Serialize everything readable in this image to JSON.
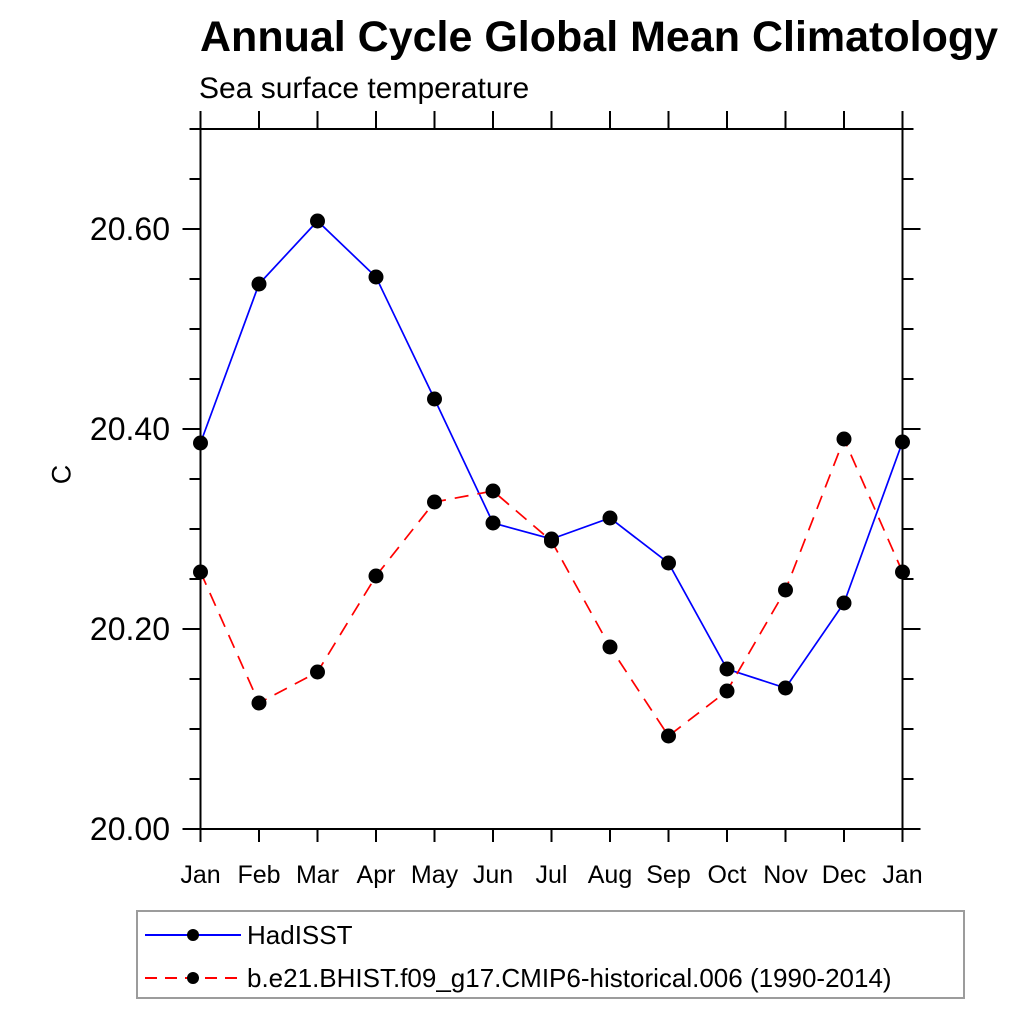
{
  "header": {
    "title": "Annual Cycle Global Mean Climatology",
    "subtitle": "Sea surface temperature"
  },
  "chart_data": {
    "type": "line",
    "title": "Annual Cycle Global Mean Climatology",
    "subtitle": "Sea surface temperature",
    "xlabel": "",
    "ylabel": "C",
    "x_tick_labels": [
      "Jan",
      "Feb",
      "Mar",
      "Apr",
      "May",
      "Jun",
      "Jul",
      "Aug",
      "Sep",
      "Oct",
      "Nov",
      "Dec",
      "Jan"
    ],
    "ylim": [
      20.0,
      20.7
    ],
    "y_ticks_major": [
      20.0,
      20.2,
      20.4,
      20.6
    ],
    "y_tick_labels": [
      "20.00",
      "20.20",
      "20.40",
      "20.60"
    ],
    "y_minor_step": 0.05,
    "grid": false,
    "legend_position": "bottom-left",
    "series": [
      {
        "name": "HadISST",
        "color": "#0000ff",
        "line_style": "solid",
        "marker": "filled-circle",
        "marker_color": "#000000",
        "values": [
          20.386,
          20.545,
          20.608,
          20.552,
          20.43,
          20.306,
          20.29,
          20.311,
          20.266,
          20.16,
          20.141,
          20.226,
          20.387
        ]
      },
      {
        "name": "b.e21.BHIST.f09_g17.CMIP6-historical.006 (1990-2014)",
        "color": "#ff0000",
        "line_style": "dashed",
        "marker": "filled-circle",
        "marker_color": "#000000",
        "values": [
          20.257,
          20.126,
          20.157,
          20.253,
          20.327,
          20.338,
          20.288,
          20.182,
          20.093,
          20.138,
          20.239,
          20.39,
          20.257
        ]
      }
    ]
  },
  "legend": {
    "items": [
      {
        "label": "HadISST",
        "color": "#0000ff",
        "style": "solid"
      },
      {
        "label": "b.e21.BHIST.f09_g17.CMIP6-historical.006 (1990-2014)",
        "color": "#ff0000",
        "style": "dashed"
      }
    ]
  },
  "colors": {
    "axis": "#000000",
    "text": "#000000",
    "marker": "#000000",
    "series_blue": "#0000ff",
    "series_red": "#ff0000",
    "legend_border": "#9c9c9c"
  }
}
